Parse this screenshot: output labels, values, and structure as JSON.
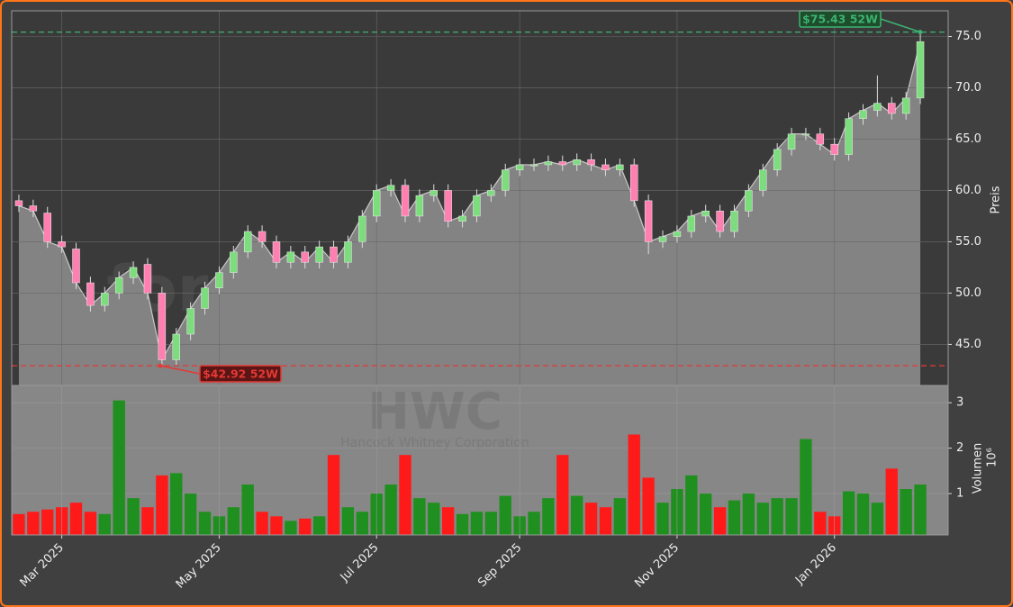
{
  "chart_data": [
    {
      "type": "candlestick",
      "ylabel": "Preis",
      "watermark": "forexsignale.trade",
      "symbol": "HWC",
      "company": "Hancock Whitney Corporation",
      "ylim": [
        41,
        77.5
      ],
      "yticks": [
        {
          "value": 45,
          "label": "45.0"
        },
        {
          "value": 50,
          "label": "50.0"
        },
        {
          "value": 55,
          "label": "55.0"
        },
        {
          "value": 60,
          "label": "60.0"
        },
        {
          "value": 65,
          "label": "65.0"
        },
        {
          "value": 70,
          "label": "70.0"
        },
        {
          "value": 75,
          "label": "75.0"
        }
      ],
      "grid": true,
      "up_color": "#7ddc7d",
      "down_color": "#ff7fb0",
      "area_color": "#838383",
      "open": [
        59,
        58.5,
        57.8,
        55,
        54.3,
        51,
        48.8,
        50,
        51.5,
        52.8,
        50,
        43.5,
        46,
        48.5,
        50.5,
        52,
        54,
        56,
        55,
        53,
        54,
        53,
        54.5,
        53,
        55,
        57.5,
        60,
        60.5,
        57.5,
        59.5,
        60,
        57,
        57.5,
        59.5,
        60,
        62,
        62.5,
        62.5,
        62.8,
        62.5,
        63,
        62.5,
        62,
        62.5,
        59,
        55,
        55.5,
        56,
        57.5,
        58,
        56,
        58,
        60,
        62,
        64,
        65.5,
        65.5,
        64.5,
        63.5,
        67,
        67.8,
        68.5,
        67.5,
        69
      ],
      "high": [
        59.6,
        59.1,
        58.4,
        55.6,
        54.9,
        51.6,
        50.6,
        52.1,
        53.1,
        53.4,
        50.6,
        46.6,
        49.1,
        51.1,
        52.6,
        54.6,
        56.6,
        56.6,
        55.6,
        54.6,
        54.6,
        55.1,
        55.1,
        55.6,
        58.1,
        60.6,
        61.1,
        61.1,
        60.1,
        60.6,
        60.6,
        58.1,
        60.1,
        60.6,
        62.6,
        63.1,
        63.1,
        63.4,
        63.4,
        63.6,
        63.6,
        63.1,
        63.1,
        63.1,
        59.6,
        56.1,
        56.6,
        58.1,
        58.6,
        58.6,
        58.6,
        60.6,
        62.6,
        64.6,
        66.1,
        66.1,
        66.1,
        65.1,
        67.6,
        68.4,
        71.2,
        69.1,
        69.6,
        75.43
      ],
      "low": [
        57.9,
        57.4,
        54.4,
        53.9,
        50.4,
        48.2,
        48.2,
        49.4,
        50.9,
        49.4,
        42.92,
        43.0,
        45.4,
        47.9,
        49.9,
        51.4,
        53.4,
        54.4,
        52.4,
        52.4,
        52.4,
        52.4,
        52.4,
        52.4,
        54.4,
        56.9,
        59.4,
        56.9,
        56.9,
        58.9,
        56.4,
        56.4,
        56.9,
        58.9,
        59.4,
        61.4,
        61.9,
        61.9,
        61.9,
        61.9,
        61.9,
        61.4,
        61.4,
        58.4,
        53.8,
        54.4,
        54.9,
        55.4,
        56.9,
        55.4,
        55.4,
        57.4,
        59.4,
        61.4,
        63.4,
        64.9,
        63.9,
        62.9,
        62.9,
        66.4,
        67.2,
        66.9,
        66.9,
        68.4
      ],
      "close": [
        58.5,
        58,
        55,
        54.5,
        51,
        48.8,
        50,
        51.5,
        52.5,
        50,
        43.5,
        46,
        48.5,
        50.5,
        52,
        54,
        56,
        55,
        53,
        54,
        53,
        54.5,
        53,
        55,
        57.5,
        60,
        60.5,
        57.5,
        59.5,
        60,
        57,
        57.5,
        59.5,
        60,
        62,
        62.5,
        62.5,
        62.8,
        62.5,
        63,
        62.5,
        62,
        62.5,
        59,
        55,
        55.5,
        56,
        57.5,
        58,
        56,
        58,
        60,
        62,
        64,
        65.5,
        65.5,
        64.5,
        63.5,
        67,
        67.8,
        68.5,
        67.5,
        69,
        74.5
      ],
      "hlines": [
        {
          "value": 75.43,
          "color": "#3cb371",
          "label": "$75.43 52W"
        },
        {
          "value": 42.92,
          "color": "#e53935",
          "label": "$42.92 52W"
        }
      ]
    },
    {
      "type": "bar",
      "ylabel": "Volumen",
      "offset_label": "10⁶",
      "ylim": [
        0.09,
        3.38
      ],
      "yticks": [
        1,
        2,
        3
      ],
      "grid": true,
      "up_color": "#1f8f1f",
      "down_color": "#ff1a1a",
      "categories": [
        null,
        null,
        null,
        "Mar 2025",
        null,
        null,
        null,
        null,
        null,
        null,
        null,
        null,
        null,
        null,
        "May 2025",
        null,
        null,
        null,
        null,
        null,
        null,
        null,
        null,
        null,
        null,
        "Jul 2025",
        null,
        null,
        null,
        null,
        null,
        null,
        null,
        null,
        null,
        "Sep 2025",
        null,
        null,
        null,
        null,
        null,
        null,
        null,
        null,
        null,
        null,
        "Nov 2025",
        null,
        null,
        null,
        null,
        null,
        null,
        null,
        null,
        null,
        null,
        "Jan 2026",
        null,
        null,
        null,
        null,
        null,
        null
      ],
      "values": [
        0.55,
        0.6,
        0.65,
        0.7,
        0.8,
        0.6,
        0.55,
        3.05,
        0.9,
        0.7,
        1.4,
        1.45,
        1.0,
        0.6,
        0.5,
        0.7,
        1.2,
        0.6,
        0.5,
        0.4,
        0.45,
        0.5,
        1.85,
        0.7,
        0.6,
        1.0,
        1.2,
        1.85,
        0.9,
        0.8,
        0.7,
        0.55,
        0.6,
        0.6,
        0.95,
        0.5,
        0.6,
        0.9,
        1.85,
        0.95,
        0.8,
        0.7,
        0.9,
        2.3,
        1.35,
        0.8,
        1.1,
        1.4,
        1.0,
        0.7,
        0.85,
        1.0,
        0.8,
        0.9,
        0.9,
        2.2,
        0.6,
        0.5,
        1.05,
        1.0,
        0.8,
        1.55,
        1.1,
        1.2
      ]
    }
  ]
}
